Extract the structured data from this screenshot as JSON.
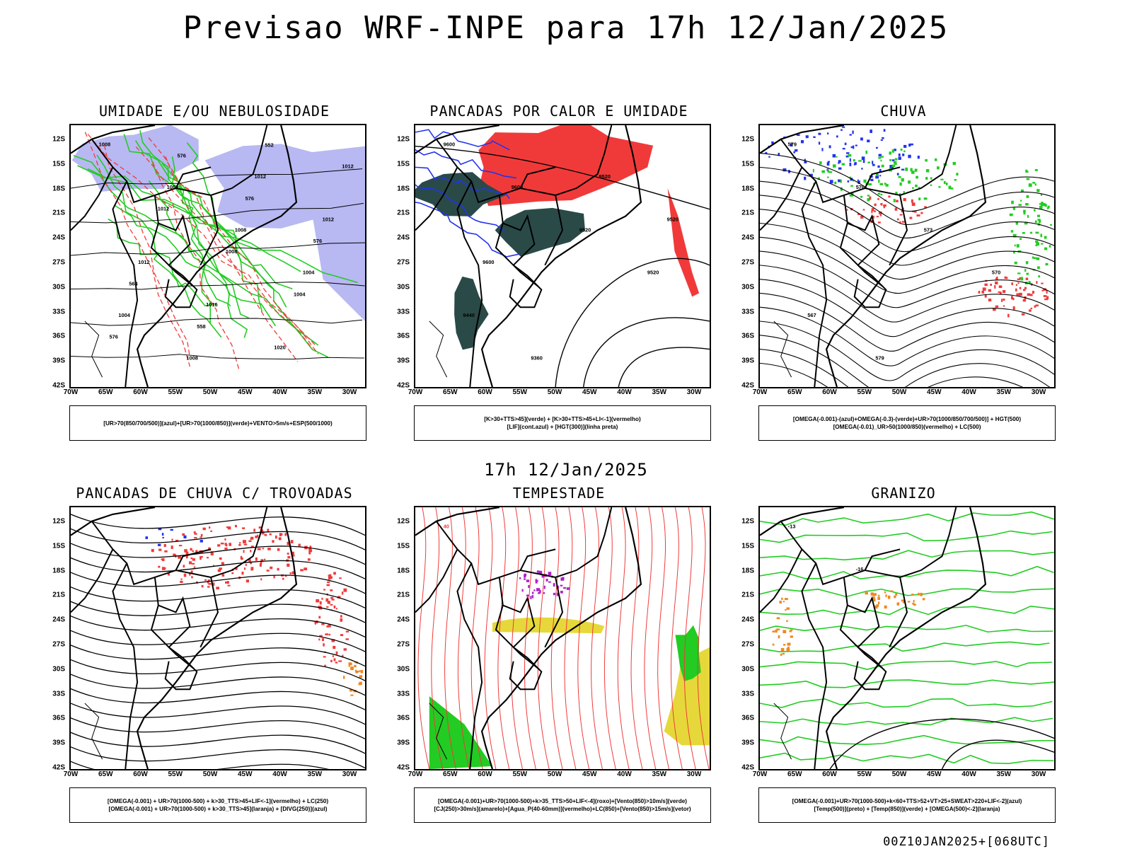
{
  "header": {
    "title": "Previsao WRF-INPE  para 17h 12/Jan/2025",
    "mid_title": "17h 12/Jan/2025",
    "footer_stamp": "00Z10JAN2025+[068UTC]"
  },
  "axes": {
    "lat_labels": [
      "12S",
      "15S",
      "18S",
      "21S",
      "24S",
      "27S",
      "30S",
      "33S",
      "36S",
      "39S",
      "42S"
    ],
    "lon_labels": [
      "70W",
      "65W",
      "60W",
      "55W",
      "50W",
      "45W",
      "40W",
      "35W",
      "30W"
    ]
  },
  "colors": {
    "green": "#22cc22",
    "red": "#f03a3a",
    "blue": "#2233ee",
    "lavender": "#b8b8f2",
    "darkteal": "#2a4a48",
    "yellow": "#e6d83a",
    "orange": "#ee8822",
    "purple": "#b020c8",
    "black": "#000000"
  },
  "panels": [
    {
      "title": "UMIDADE E/OU NEBULOSIDADE",
      "legend": [
        "[UR>70(850/700/500)](azul)+[UR>70(1000/850)](verde)+VENTO>5m/s+ESP(500/1000)"
      ],
      "labels": [
        "1008",
        "1004",
        "1008",
        "1004",
        "1004",
        "1008",
        "1012",
        "1012",
        "1012",
        "1016",
        "1020",
        "1012",
        "1012",
        "1008",
        "1004",
        "576",
        "576",
        "576",
        "576",
        "564",
        "558",
        "552"
      ]
    },
    {
      "title": "PANCADAS POR CALOR E UMIDADE",
      "legend": [
        "[K>30+TTS>45](verde) + [K>30+TTS>45+LI<-1](vermelho)",
        "[LIF](cont.azul) + [HGT(300)](linha preta)"
      ],
      "labels": [
        "9600",
        "9600",
        "9520",
        "9520",
        "9440",
        "9360",
        "9520",
        "9520",
        "9600"
      ]
    },
    {
      "title": "CHUVA",
      "legend": [
        "[OMEGA(-0.001)-(azul)+OMEGA(-0.3)-(verde)+UR>70(1000/850/700/500)] + HGT(500)",
        "[OMEGA(-0.01)_UR>50(1000/850)(vermelho) + LC(500)"
      ],
      "labels": [
        "579",
        "576",
        "573",
        "570",
        "567",
        "579"
      ]
    },
    {
      "title": "PANCADAS DE CHUVA C/ TROVOADAS",
      "legend": [
        "[OMEGA(-0.001) + UR>70(1000-500) + k>30_TTS>45+LIF<-1](vermelho) + LC(250)",
        "[OMEGA(-0.001) + UR>70(1000-500) + k>30_TTS>45](laranja) + [DIVG(250)](azul)"
      ],
      "labels": []
    },
    {
      "title": "TEMPESTADE",
      "legend": [
        "[OMEGA(-0.001)+UR>70(1000-500)+k>35_TTS>50+LIF<-4](roxo)+[Vento(850)>10m/s](verde)",
        "[CJ(250)>30m/s](amarelo)+[Agua_P(40-60mm)](vermelho)+LC(850)+[Vento(850)>15m/s](vetor)"
      ],
      "labels": [
        "40"
      ]
    },
    {
      "title": "GRANIZO",
      "legend": [
        "[OMEGA(-0.001)+UR>70(1000-500)+k<60+TTS>52+VT>25+SWEAT>220+LIF<-2](azul)",
        "[Temp(500)](preto) + [Temp(850)](verde) + [OMEGA(500)<-2](laranja)"
      ],
      "labels": [
        "-13",
        "-16"
      ]
    }
  ]
}
